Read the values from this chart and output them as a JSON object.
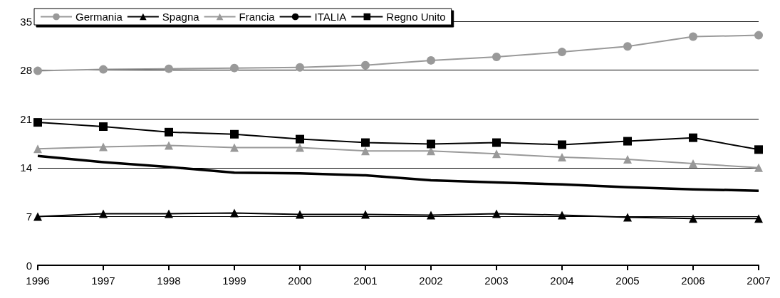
{
  "chart_data": {
    "type": "line",
    "categories": [
      "1996",
      "1997",
      "1998",
      "1999",
      "2000",
      "2001",
      "2002",
      "2003",
      "2004",
      "2005",
      "2006",
      "2007"
    ],
    "series": [
      {
        "name": "Germania",
        "color": "#999999",
        "marker": "circle",
        "values": [
          27.9,
          28.1,
          28.2,
          28.3,
          28.4,
          28.7,
          29.4,
          29.9,
          30.6,
          31.4,
          32.8,
          33.0
        ]
      },
      {
        "name": "Spagna",
        "color": "#000000",
        "marker": "triangle",
        "values": [
          7.0,
          7.4,
          7.4,
          7.5,
          7.3,
          7.3,
          7.2,
          7.4,
          7.2,
          6.9,
          6.7,
          6.7
        ]
      },
      {
        "name": "Francia",
        "color": "#999999",
        "marker": "triangle",
        "values": [
          16.7,
          17.0,
          17.2,
          16.9,
          16.9,
          16.4,
          16.4,
          16.0,
          15.5,
          15.2,
          14.6,
          14.0
        ]
      },
      {
        "name": "ITALIA",
        "color": "#000000",
        "marker": "none",
        "values": [
          15.7,
          14.8,
          14.1,
          13.3,
          13.2,
          12.9,
          12.2,
          11.9,
          11.6,
          11.2,
          10.9,
          10.7
        ]
      },
      {
        "name": "Regno Unito",
        "color": "#000000",
        "marker": "square",
        "values": [
          20.5,
          19.9,
          19.1,
          18.8,
          18.1,
          17.6,
          17.4,
          17.6,
          17.3,
          17.8,
          18.3,
          16.6
        ]
      }
    ],
    "ylim": [
      0,
      35
    ],
    "yticks": [
      0,
      7,
      14,
      21,
      28,
      35
    ],
    "grid": "y",
    "legend": "top left"
  }
}
